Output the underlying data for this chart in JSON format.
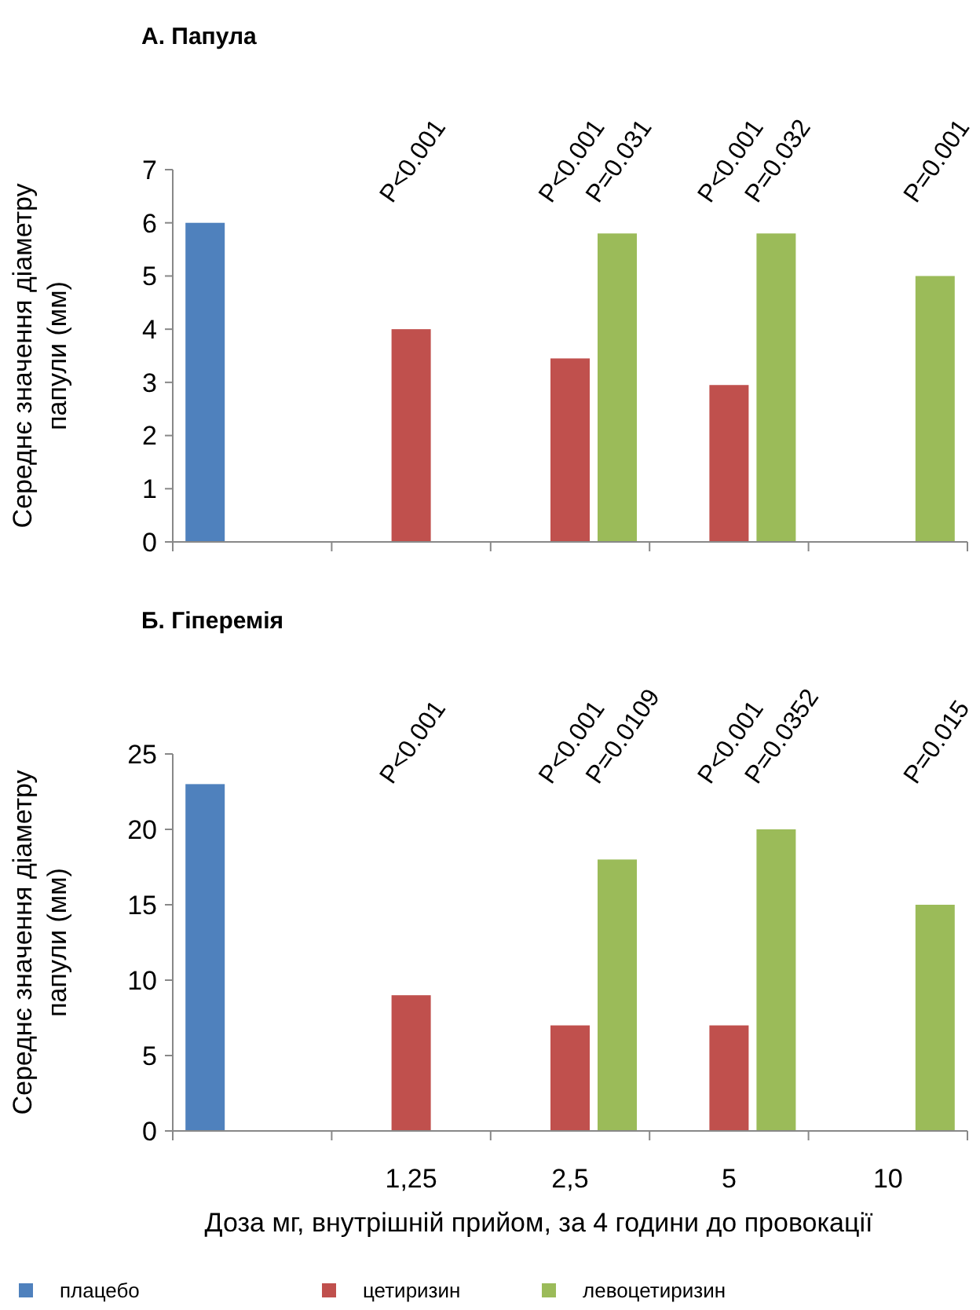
{
  "chart_data": [
    {
      "type": "bar",
      "title": "А. Папула",
      "ylabel": "Середнє значення діаметру папули (мм)",
      "categories": [
        null,
        null,
        null,
        null,
        null
      ],
      "tick_labels": "y",
      "ylim": [
        0,
        7
      ],
      "yticks": [
        0,
        1,
        2,
        3,
        4,
        5,
        6,
        7
      ],
      "grid": false,
      "legend": false,
      "series": [
        {
          "color": "#4f81bd",
          "values": [
            6.0,
            null,
            null,
            null,
            null
          ]
        },
        {
          "color": "#c0504d",
          "values": [
            null,
            4.0,
            3.45,
            2.95,
            null
          ]
        },
        {
          "color": "#9bbb59",
          "values": [
            null,
            null,
            5.8,
            5.8,
            5.0
          ]
        }
      ],
      "annotations": [
        "P<0.001",
        "P<0.001",
        "P=0.031",
        "P<0.001",
        "P=0.032",
        "P=0.001"
      ]
    },
    {
      "type": "bar",
      "title": "Б. Гіперемія",
      "ylabel": "Середнє значення діаметру папули (мм)",
      "xlabel": "Доза мг, внутрішній прийом, за 4 години до провокації",
      "categories": [
        null,
        "1,25",
        "2,5",
        "5",
        "10"
      ],
      "ylim": [
        0,
        25
      ],
      "yticks": [
        0,
        5,
        10,
        15,
        20,
        25
      ],
      "grid": false,
      "legend": "bottom",
      "series": [
        {
          "name": "плацебо",
          "color": "#4f81bd",
          "values": [
            23,
            null,
            null,
            null,
            null
          ]
        },
        {
          "name": "цетиризин",
          "color": "#c0504d",
          "values": [
            null,
            9,
            7,
            7,
            null
          ]
        },
        {
          "name": "левоцетиризин",
          "color": "#9bbb59",
          "values": [
            null,
            null,
            18,
            20,
            15
          ]
        }
      ],
      "annotations": [
        "P<0.001",
        "P<0.001",
        "P=0.0109",
        "P<0.001",
        "P=0.0352",
        "P=0.015"
      ]
    }
  ]
}
